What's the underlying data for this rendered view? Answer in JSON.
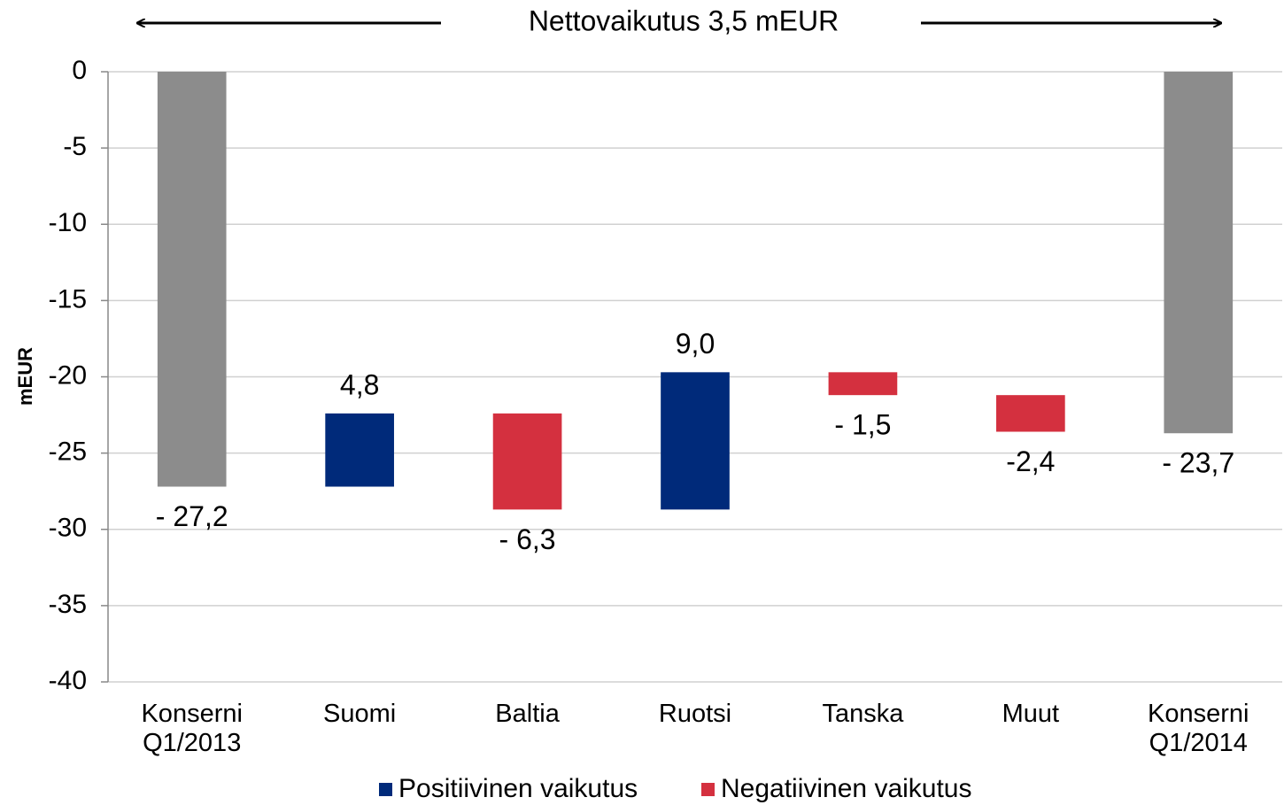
{
  "chart_data": {
    "type": "waterfall",
    "title": "Nettovaikutus 3,5 mEUR",
    "y_label": "mEUR",
    "categories": [
      "Konserni Q1/2013",
      "Suomi",
      "Baltia",
      "Ruotsi",
      "Tanska",
      "Muut",
      "Konserni Q1/2014"
    ],
    "values": [
      -27.2,
      4.8,
      -6.3,
      9.0,
      -1.5,
      -2.4,
      -23.7
    ],
    "value_labels": [
      "- 27,2",
      "4,8",
      "- 6,3",
      "9,0",
      "- 1,5",
      "-2,4",
      "- 23,7"
    ],
    "measure": [
      "total",
      "relative",
      "relative",
      "relative",
      "relative",
      "relative",
      "total"
    ],
    "total_color": "#8c8c8c",
    "legend": [
      {
        "name": "Positiivinen vaikutus",
        "color": "#002a7a"
      },
      {
        "name": "Negatiivinen vaikutus",
        "color": "#d4303f"
      }
    ],
    "ylim": [
      -40,
      0
    ],
    "yticks": [
      0,
      -5,
      -10,
      -15,
      -20,
      -25,
      -30,
      -35,
      -40
    ],
    "grid": true
  }
}
